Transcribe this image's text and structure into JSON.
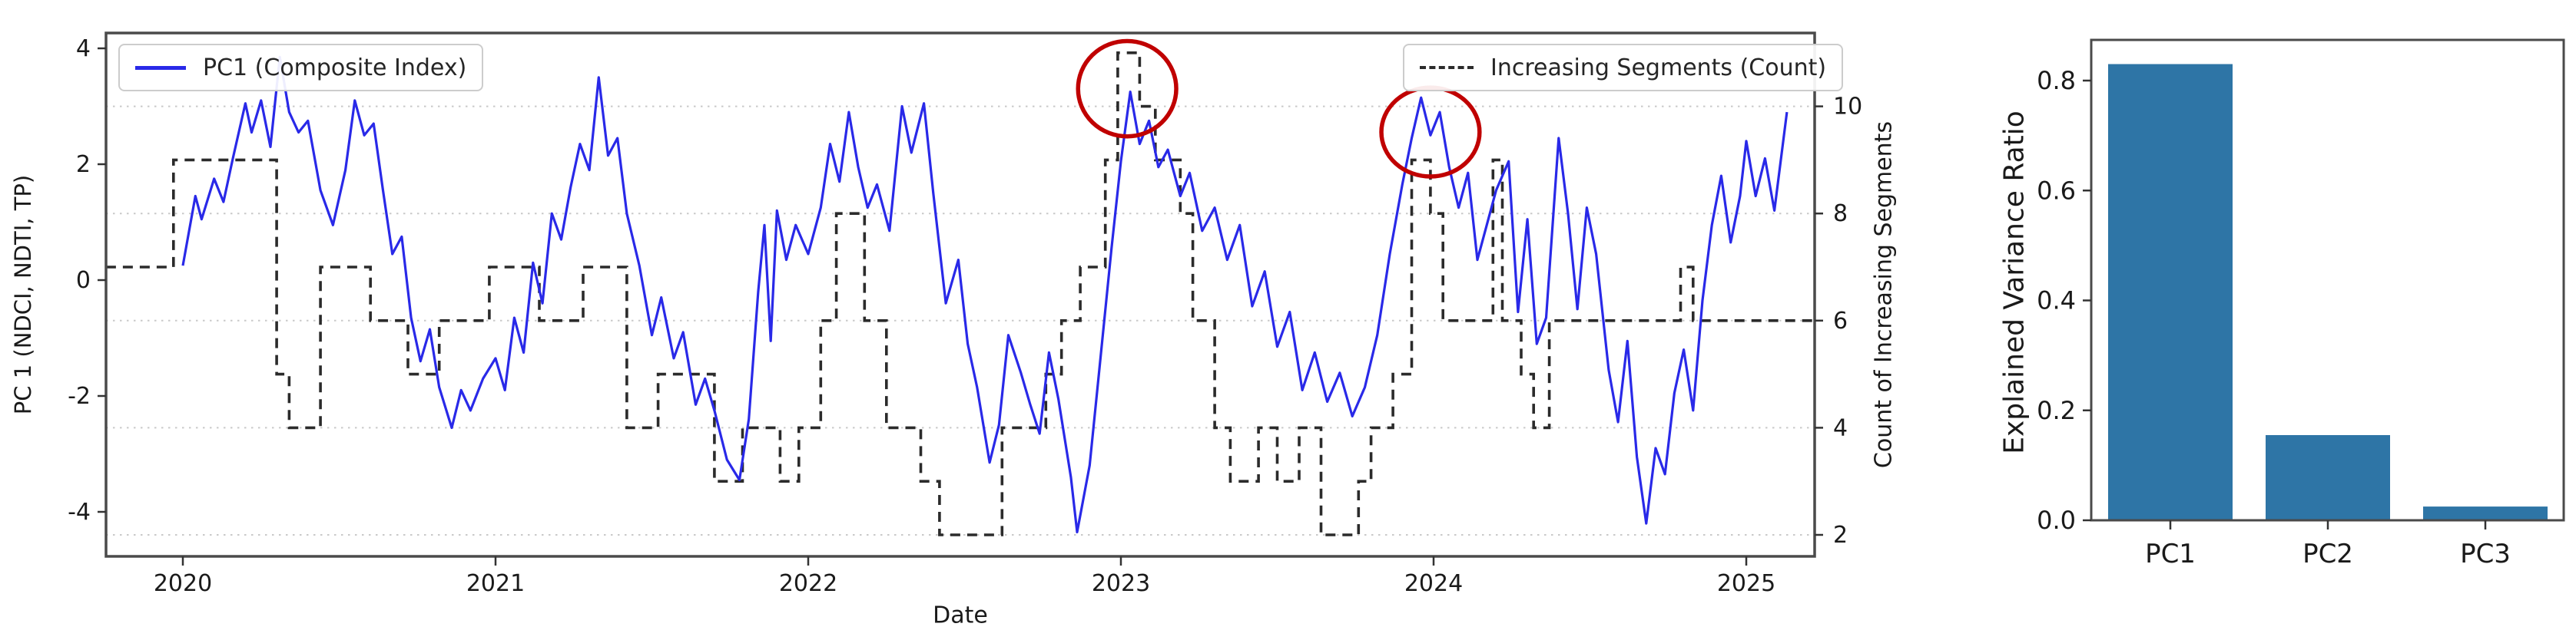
{
  "figure": {
    "background": "#ffffff",
    "pc1_line_color": "#2929e8",
    "count_line_color": "#2b2b2b",
    "grid_color": "#c9c9c9",
    "spine_color": "#4a4a4a",
    "tick_color": "#333333",
    "text_color": "#1a1a1a",
    "annotation_red": "#c00000",
    "bar_color": "#2e75a6"
  },
  "chart_data": [
    {
      "type": "line",
      "title": "",
      "xlabel": "Date",
      "ylabel_left": "PC 1 (NDCI, NDTI, TP)",
      "ylabel_right": "Count of Increasing Segments",
      "xlim": [
        2019.754,
        2025.219
      ],
      "ylim_left": [
        -4.77,
        4.27
      ],
      "ylim_right": [
        1.6,
        11.37
      ],
      "x_ticks": [
        2020,
        2021,
        2022,
        2023,
        2024,
        2025
      ],
      "y_ticks_left": [
        -4,
        -2,
        0,
        2,
        4
      ],
      "y_ticks_right": [
        2,
        4,
        6,
        8,
        10
      ],
      "grid": "horizontal dotted at right-axis ticks",
      "legend_positions": [
        "upper left",
        "upper right"
      ],
      "series": [
        {
          "name": "PC1 (Composite Index)",
          "axis": "left",
          "style": "solid",
          "color": "#2929e8",
          "points": [
            [
              2020.0,
              0.25
            ],
            [
              2020.04,
              1.45
            ],
            [
              2020.06,
              1.05
            ],
            [
              2020.1,
              1.75
            ],
            [
              2020.13,
              1.35
            ],
            [
              2020.16,
              2.1
            ],
            [
              2020.2,
              3.05
            ],
            [
              2020.22,
              2.55
            ],
            [
              2020.25,
              3.1
            ],
            [
              2020.28,
              2.3
            ],
            [
              2020.31,
              3.85
            ],
            [
              2020.34,
              2.9
            ],
            [
              2020.37,
              2.55
            ],
            [
              2020.4,
              2.75
            ],
            [
              2020.44,
              1.55
            ],
            [
              2020.48,
              0.95
            ],
            [
              2020.52,
              1.9
            ],
            [
              2020.55,
              3.1
            ],
            [
              2020.58,
              2.5
            ],
            [
              2020.61,
              2.7
            ],
            [
              2020.64,
              1.55
            ],
            [
              2020.67,
              0.45
            ],
            [
              2020.7,
              0.75
            ],
            [
              2020.73,
              -0.65
            ],
            [
              2020.76,
              -1.4
            ],
            [
              2020.79,
              -0.85
            ],
            [
              2020.82,
              -1.85
            ],
            [
              2020.86,
              -2.55
            ],
            [
              2020.89,
              -1.9
            ],
            [
              2020.92,
              -2.25
            ],
            [
              2020.96,
              -1.7
            ],
            [
              2021.0,
              -1.35
            ],
            [
              2021.03,
              -1.9
            ],
            [
              2021.06,
              -0.65
            ],
            [
              2021.09,
              -1.25
            ],
            [
              2021.12,
              0.3
            ],
            [
              2021.15,
              -0.4
            ],
            [
              2021.18,
              1.15
            ],
            [
              2021.21,
              0.7
            ],
            [
              2021.24,
              1.6
            ],
            [
              2021.27,
              2.35
            ],
            [
              2021.3,
              1.9
            ],
            [
              2021.33,
              3.5
            ],
            [
              2021.36,
              2.15
            ],
            [
              2021.39,
              2.45
            ],
            [
              2021.42,
              1.15
            ],
            [
              2021.46,
              0.25
            ],
            [
              2021.5,
              -0.95
            ],
            [
              2021.53,
              -0.3
            ],
            [
              2021.57,
              -1.35
            ],
            [
              2021.6,
              -0.9
            ],
            [
              2021.64,
              -2.15
            ],
            [
              2021.67,
              -1.7
            ],
            [
              2021.7,
              -2.25
            ],
            [
              2021.74,
              -3.1
            ],
            [
              2021.78,
              -3.45
            ],
            [
              2021.81,
              -2.4
            ],
            [
              2021.84,
              -0.2
            ],
            [
              2021.86,
              0.95
            ],
            [
              2021.88,
              -1.05
            ],
            [
              2021.9,
              1.2
            ],
            [
              2021.93,
              0.35
            ],
            [
              2021.96,
              0.95
            ],
            [
              2022.0,
              0.45
            ],
            [
              2022.04,
              1.25
            ],
            [
              2022.07,
              2.35
            ],
            [
              2022.1,
              1.7
            ],
            [
              2022.13,
              2.9
            ],
            [
              2022.16,
              1.95
            ],
            [
              2022.19,
              1.25
            ],
            [
              2022.22,
              1.65
            ],
            [
              2022.26,
              0.85
            ],
            [
              2022.3,
              3.0
            ],
            [
              2022.33,
              2.2
            ],
            [
              2022.37,
              3.05
            ],
            [
              2022.4,
              1.5
            ],
            [
              2022.44,
              -0.4
            ],
            [
              2022.48,
              0.35
            ],
            [
              2022.51,
              -1.1
            ],
            [
              2022.54,
              -1.85
            ],
            [
              2022.58,
              -3.15
            ],
            [
              2022.61,
              -2.5
            ],
            [
              2022.64,
              -0.95
            ],
            [
              2022.68,
              -1.6
            ],
            [
              2022.71,
              -2.15
            ],
            [
              2022.74,
              -2.65
            ],
            [
              2022.77,
              -1.25
            ],
            [
              2022.8,
              -2.05
            ],
            [
              2022.84,
              -3.4
            ],
            [
              2022.86,
              -4.35
            ],
            [
              2022.9,
              -3.2
            ],
            [
              2022.93,
              -1.6
            ],
            [
              2022.97,
              0.55
            ],
            [
              2023.0,
              2.05
            ],
            [
              2023.03,
              3.25
            ],
            [
              2023.06,
              2.35
            ],
            [
              2023.09,
              2.75
            ],
            [
              2023.12,
              1.95
            ],
            [
              2023.15,
              2.25
            ],
            [
              2023.19,
              1.45
            ],
            [
              2023.22,
              1.85
            ],
            [
              2023.26,
              0.85
            ],
            [
              2023.3,
              1.25
            ],
            [
              2023.34,
              0.35
            ],
            [
              2023.38,
              0.95
            ],
            [
              2023.42,
              -0.45
            ],
            [
              2023.46,
              0.15
            ],
            [
              2023.5,
              -1.15
            ],
            [
              2023.54,
              -0.55
            ],
            [
              2023.58,
              -1.9
            ],
            [
              2023.62,
              -1.25
            ],
            [
              2023.66,
              -2.1
            ],
            [
              2023.7,
              -1.6
            ],
            [
              2023.74,
              -2.35
            ],
            [
              2023.78,
              -1.85
            ],
            [
              2023.82,
              -0.95
            ],
            [
              2023.86,
              0.45
            ],
            [
              2023.9,
              1.65
            ],
            [
              2023.93,
              2.45
            ],
            [
              2023.96,
              3.15
            ],
            [
              2023.99,
              2.5
            ],
            [
              2024.02,
              2.9
            ],
            [
              2024.05,
              1.95
            ],
            [
              2024.08,
              1.25
            ],
            [
              2024.11,
              1.85
            ],
            [
              2024.14,
              0.35
            ],
            [
              2024.17,
              0.95
            ],
            [
              2024.2,
              1.55
            ],
            [
              2024.24,
              2.05
            ],
            [
              2024.27,
              -0.55
            ],
            [
              2024.3,
              1.05
            ],
            [
              2024.33,
              -1.1
            ],
            [
              2024.36,
              -0.65
            ],
            [
              2024.4,
              2.45
            ],
            [
              2024.43,
              1.15
            ],
            [
              2024.46,
              -0.5
            ],
            [
              2024.49,
              1.25
            ],
            [
              2024.52,
              0.45
            ],
            [
              2024.56,
              -1.55
            ],
            [
              2024.59,
              -2.45
            ],
            [
              2024.62,
              -1.05
            ],
            [
              2024.65,
              -3.05
            ],
            [
              2024.68,
              -4.2
            ],
            [
              2024.71,
              -2.9
            ],
            [
              2024.74,
              -3.35
            ],
            [
              2024.77,
              -1.95
            ],
            [
              2024.8,
              -1.2
            ],
            [
              2024.83,
              -2.25
            ],
            [
              2024.86,
              -0.35
            ],
            [
              2024.89,
              0.95
            ],
            [
              2024.92,
              1.8
            ],
            [
              2024.95,
              0.65
            ],
            [
              2024.98,
              1.45
            ],
            [
              2025.0,
              2.4
            ],
            [
              2025.03,
              1.45
            ],
            [
              2025.06,
              2.1
            ],
            [
              2025.09,
              1.2
            ],
            [
              2025.13,
              2.9
            ]
          ]
        },
        {
          "name": "Increasing Segments (Count)",
          "axis": "right",
          "style": "dashed-step",
          "color": "#2b2b2b",
          "points": [
            [
              2019.754,
              7
            ],
            [
              2019.97,
              9
            ],
            [
              2020.3,
              5
            ],
            [
              2020.34,
              4
            ],
            [
              2020.44,
              7
            ],
            [
              2020.6,
              6
            ],
            [
              2020.72,
              5
            ],
            [
              2020.82,
              6
            ],
            [
              2020.98,
              7
            ],
            [
              2021.14,
              6
            ],
            [
              2021.28,
              7
            ],
            [
              2021.42,
              4
            ],
            [
              2021.52,
              5
            ],
            [
              2021.7,
              3
            ],
            [
              2021.79,
              4
            ],
            [
              2021.91,
              3
            ],
            [
              2021.97,
              4
            ],
            [
              2022.04,
              6
            ],
            [
              2022.09,
              8
            ],
            [
              2022.18,
              6
            ],
            [
              2022.25,
              4
            ],
            [
              2022.36,
              3
            ],
            [
              2022.42,
              2
            ],
            [
              2022.62,
              4
            ],
            [
              2022.76,
              5
            ],
            [
              2022.81,
              6
            ],
            [
              2022.87,
              7
            ],
            [
              2022.95,
              9
            ],
            [
              2022.99,
              11
            ],
            [
              2023.06,
              10
            ],
            [
              2023.11,
              9
            ],
            [
              2023.19,
              8
            ],
            [
              2023.23,
              6
            ],
            [
              2023.3,
              4
            ],
            [
              2023.35,
              3
            ],
            [
              2023.44,
              4
            ],
            [
              2023.5,
              3
            ],
            [
              2023.57,
              4
            ],
            [
              2023.64,
              2
            ],
            [
              2023.76,
              3
            ],
            [
              2023.8,
              4
            ],
            [
              2023.87,
              5
            ],
            [
              2023.93,
              9
            ],
            [
              2023.99,
              8
            ],
            [
              2024.03,
              6
            ],
            [
              2024.19,
              9
            ],
            [
              2024.22,
              6
            ],
            [
              2024.28,
              5
            ],
            [
              2024.32,
              4
            ],
            [
              2024.37,
              6
            ],
            [
              2024.79,
              7
            ],
            [
              2024.83,
              6
            ]
          ]
        }
      ],
      "annotations": [
        {
          "shape": "ellipse",
          "color": "#c00000",
          "t": 2023.02,
          "count": 10.33,
          "rt": 0.157,
          "rcount": 0.89
        },
        {
          "shape": "ellipse",
          "color": "#c00000",
          "t": 2023.99,
          "count": 9.52,
          "rt": 0.157,
          "rcount": 0.83
        }
      ]
    },
    {
      "type": "bar",
      "title": "",
      "xlabel": "",
      "ylabel": "Explained Variance Ratio",
      "categories": [
        "PC1",
        "PC2",
        "PC3"
      ],
      "values": [
        0.83,
        0.155,
        0.025
      ],
      "y_ticks": [
        0.0,
        0.2,
        0.4,
        0.6,
        0.8
      ],
      "ylim": [
        0,
        0.87
      ],
      "bar_color": "#2e75a6",
      "grid": "off"
    }
  ]
}
